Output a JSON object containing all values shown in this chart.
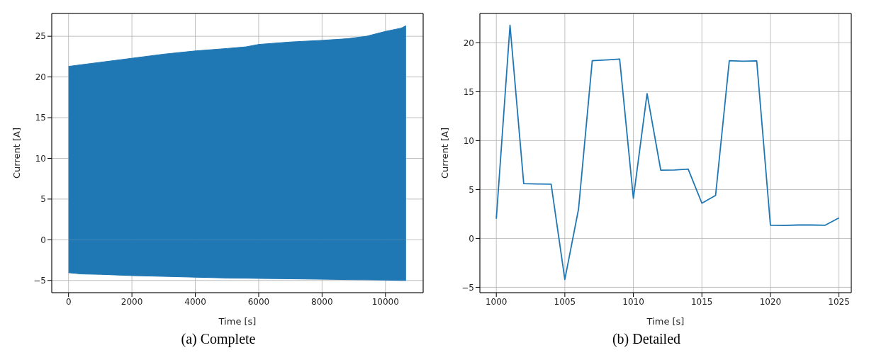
{
  "chart_data": [
    {
      "type": "area",
      "title": "(a) Complete",
      "xlabel": "Time [s]",
      "ylabel": "Current [A]",
      "x": [
        0,
        400,
        1000,
        2000,
        3000,
        4000,
        5000,
        5600,
        6000,
        7000,
        8000,
        8800,
        9400,
        10000,
        10500,
        10650
      ],
      "series": [
        {
          "color": "#1f77b4",
          "values": [
            21.3,
            21.5,
            21.8,
            22.3,
            22.8,
            23.2,
            23.5,
            23.7,
            24.0,
            24.3,
            24.5,
            24.7,
            25.0,
            25.6,
            26.0,
            26.3
          ]
        },
        {
          "color": "#1f77b4",
          "values": [
            -4.05,
            -4.2,
            -4.25,
            -4.4,
            -4.5,
            -4.6,
            -4.7,
            -4.72,
            -4.75,
            -4.8,
            -4.85,
            -4.9,
            -4.92,
            -4.95,
            -5.0,
            -5.0
          ]
        }
      ],
      "xlim": [
        -530,
        11190
      ],
      "ylim": [
        -6.5,
        27.8
      ],
      "xticks": [
        0,
        2000,
        4000,
        6000,
        8000,
        10000
      ],
      "yticks": [
        -5,
        0,
        5,
        10,
        15,
        20,
        25
      ],
      "grid": true
    },
    {
      "type": "line",
      "title": "(b) Detailed",
      "xlabel": "Time [s]",
      "ylabel": "Current [A]",
      "x": [
        1000,
        1001,
        1002,
        1003,
        1004,
        1005,
        1006,
        1007,
        1008,
        1009,
        1010,
        1011,
        1012,
        1013,
        1014,
        1015,
        1016,
        1017,
        1018,
        1019,
        1020,
        1021,
        1022,
        1023,
        1024,
        1025
      ],
      "series": [
        {
          "color": "#1f77b4",
          "values": [
            2.0,
            21.8,
            5.6,
            5.57,
            5.55,
            -4.2,
            3.0,
            18.17,
            18.25,
            18.34,
            4.1,
            14.8,
            6.97,
            7.0,
            7.08,
            3.6,
            4.4,
            18.17,
            18.12,
            18.15,
            1.35,
            1.32,
            1.37,
            1.37,
            1.35,
            2.1
          ]
        }
      ],
      "xlim": [
        998.8,
        1025.9
      ],
      "ylim": [
        -5.55,
        23.0
      ],
      "xticks": [
        1000,
        1005,
        1010,
        1015,
        1020,
        1025
      ],
      "yticks": [
        -5,
        0,
        5,
        10,
        15,
        20
      ],
      "grid": true
    }
  ]
}
